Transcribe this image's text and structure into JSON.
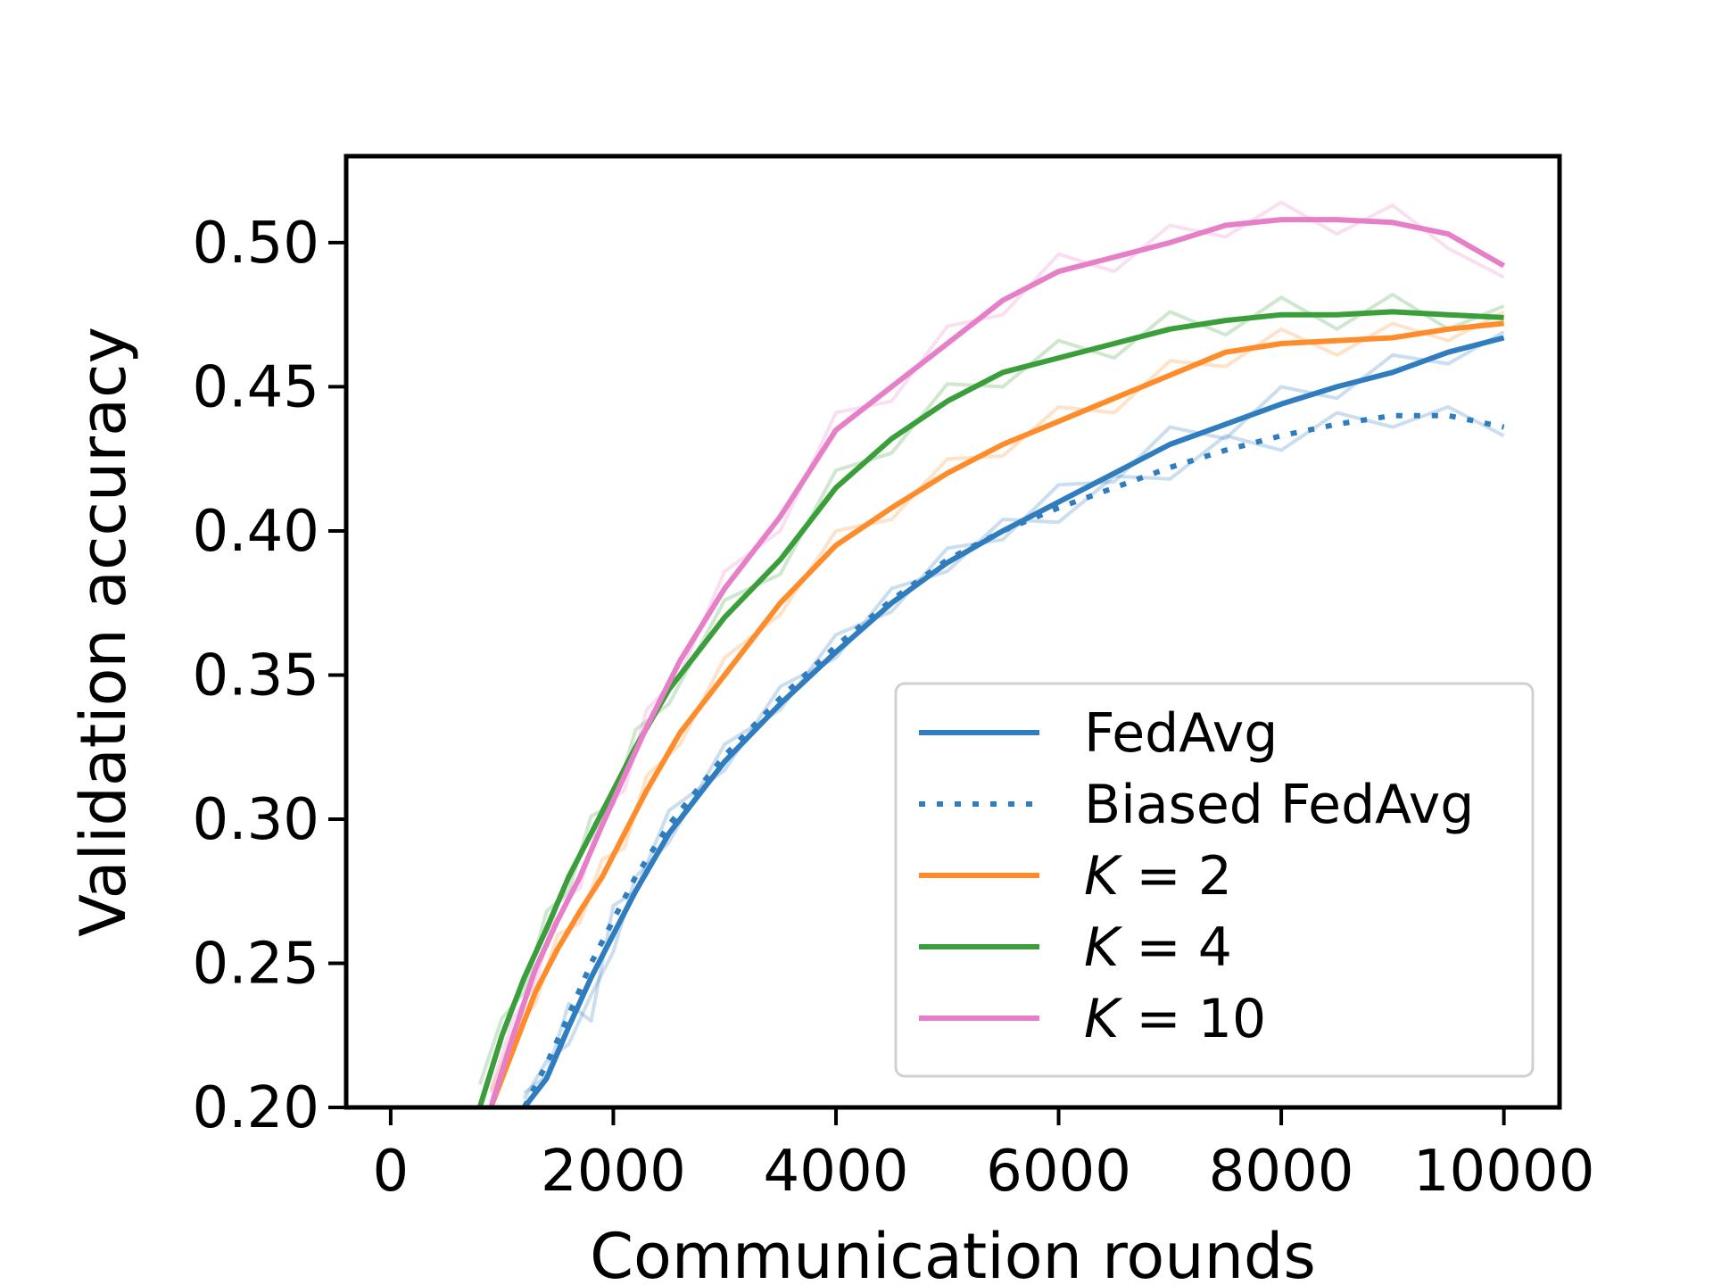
{
  "chart_data": {
    "type": "line",
    "title": "",
    "xlabel": "Communication rounds",
    "ylabel": "Validation accuracy",
    "xlim": [
      -400,
      10500
    ],
    "ylim": [
      0.2,
      0.53
    ],
    "xticks": [
      0,
      2000,
      4000,
      6000,
      8000,
      10000
    ],
    "xtick_labels": [
      "0",
      "2000",
      "4000",
      "6000",
      "8000",
      "10000"
    ],
    "yticks": [
      0.2,
      0.25,
      0.3,
      0.35,
      0.4,
      0.45,
      0.5
    ],
    "ytick_labels": [
      "0.20",
      "0.25",
      "0.30",
      "0.35",
      "0.40",
      "0.45",
      "0.50"
    ],
    "legend_position": "lower-right",
    "series": [
      {
        "name": "FedAvg",
        "legend_label": "FedAvg",
        "legend_italic_k": false,
        "color": "#2f7dbf",
        "dash": "solid",
        "x": [
          1200,
          1400,
          1600,
          1800,
          2000,
          2200,
          2500,
          3000,
          3500,
          4000,
          4500,
          5000,
          5500,
          6000,
          6500,
          7000,
          7500,
          8000,
          8500,
          9000,
          9500,
          10000
        ],
        "values": [
          0.2,
          0.21,
          0.228,
          0.245,
          0.26,
          0.275,
          0.295,
          0.32,
          0.34,
          0.358,
          0.375,
          0.389,
          0.4,
          0.41,
          0.42,
          0.43,
          0.437,
          0.444,
          0.45,
          0.455,
          0.462,
          0.467
        ],
        "raw_values": [
          0.203,
          0.216,
          0.222,
          0.239,
          0.254,
          0.28,
          0.292,
          0.326,
          0.338,
          0.364,
          0.372,
          0.394,
          0.397,
          0.416,
          0.417,
          0.436,
          0.432,
          0.45,
          0.446,
          0.461,
          0.458,
          0.469
        ]
      },
      {
        "name": "Biased FedAvg",
        "legend_label": "Biased FedAvg",
        "legend_italic_k": false,
        "color": "#2f7dbf",
        "dash": "dotted",
        "x": [
          1200,
          1400,
          1600,
          1800,
          2000,
          2200,
          2500,
          3000,
          3500,
          4000,
          4500,
          5000,
          5500,
          6000,
          6500,
          7000,
          7500,
          8000,
          8500,
          9000,
          9500,
          10000
        ],
        "values": [
          0.2,
          0.215,
          0.232,
          0.25,
          0.265,
          0.28,
          0.298,
          0.322,
          0.342,
          0.36,
          0.376,
          0.39,
          0.4,
          0.408,
          0.415,
          0.422,
          0.428,
          0.433,
          0.437,
          0.44,
          0.44,
          0.436
        ],
        "raw_values": [
          0.205,
          0.211,
          0.236,
          0.23,
          0.27,
          0.275,
          0.303,
          0.317,
          0.346,
          0.356,
          0.38,
          0.386,
          0.404,
          0.403,
          0.419,
          0.418,
          0.433,
          0.428,
          0.441,
          0.436,
          0.443,
          0.433
        ]
      },
      {
        "name": "K = 2",
        "legend_label": "K = 2",
        "legend_italic_k": true,
        "color": "#ff8c2a",
        "dash": "solid",
        "x": [
          900,
          1100,
          1300,
          1500,
          1700,
          1900,
          2100,
          2300,
          2600,
          3000,
          3500,
          4000,
          4500,
          5000,
          5500,
          6000,
          6500,
          7000,
          7500,
          8000,
          8500,
          9000,
          9500,
          10000
        ],
        "values": [
          0.2,
          0.22,
          0.24,
          0.255,
          0.268,
          0.28,
          0.295,
          0.31,
          0.33,
          0.35,
          0.375,
          0.395,
          0.408,
          0.42,
          0.43,
          0.438,
          0.446,
          0.454,
          0.462,
          0.465,
          0.466,
          0.467,
          0.47,
          0.472
        ],
        "raw_values": [
          0.205,
          0.226,
          0.236,
          0.26,
          0.264,
          0.286,
          0.29,
          0.315,
          0.326,
          0.356,
          0.371,
          0.4,
          0.404,
          0.425,
          0.426,
          0.443,
          0.441,
          0.459,
          0.457,
          0.47,
          0.461,
          0.472,
          0.466,
          0.476
        ]
      },
      {
        "name": "K = 4",
        "legend_label": "K = 4",
        "legend_italic_k": true,
        "color": "#3a9e3a",
        "dash": "solid",
        "x": [
          800,
          1000,
          1200,
          1400,
          1600,
          1800,
          2000,
          2200,
          2500,
          3000,
          3500,
          4000,
          4500,
          5000,
          5500,
          6000,
          6500,
          7000,
          7500,
          8000,
          8500,
          9000,
          9500,
          10000
        ],
        "values": [
          0.2,
          0.225,
          0.245,
          0.262,
          0.28,
          0.295,
          0.31,
          0.325,
          0.345,
          0.37,
          0.39,
          0.415,
          0.432,
          0.445,
          0.455,
          0.46,
          0.465,
          0.47,
          0.473,
          0.475,
          0.475,
          0.476,
          0.475,
          0.474
        ],
        "raw_values": [
          0.208,
          0.231,
          0.24,
          0.268,
          0.275,
          0.301,
          0.305,
          0.331,
          0.34,
          0.376,
          0.385,
          0.421,
          0.427,
          0.451,
          0.45,
          0.466,
          0.46,
          0.476,
          0.468,
          0.481,
          0.47,
          0.482,
          0.47,
          0.478
        ]
      },
      {
        "name": "K = 10",
        "legend_label": "K = 10",
        "legend_italic_k": true,
        "color": "#e67fc8",
        "dash": "solid",
        "x": [
          900,
          1100,
          1300,
          1500,
          1700,
          1900,
          2100,
          2300,
          2600,
          3000,
          3500,
          4000,
          4500,
          5000,
          5500,
          6000,
          6500,
          7000,
          7500,
          8000,
          8500,
          9000,
          9500,
          10000
        ],
        "values": [
          0.2,
          0.225,
          0.248,
          0.265,
          0.28,
          0.298,
          0.315,
          0.332,
          0.355,
          0.38,
          0.405,
          0.435,
          0.45,
          0.465,
          0.48,
          0.49,
          0.495,
          0.5,
          0.506,
          0.508,
          0.508,
          0.507,
          0.503,
          0.492
        ],
        "raw_values": [
          0.206,
          0.231,
          0.243,
          0.271,
          0.276,
          0.304,
          0.31,
          0.338,
          0.35,
          0.386,
          0.4,
          0.441,
          0.445,
          0.471,
          0.475,
          0.496,
          0.49,
          0.506,
          0.502,
          0.514,
          0.503,
          0.513,
          0.498,
          0.488
        ]
      }
    ]
  }
}
